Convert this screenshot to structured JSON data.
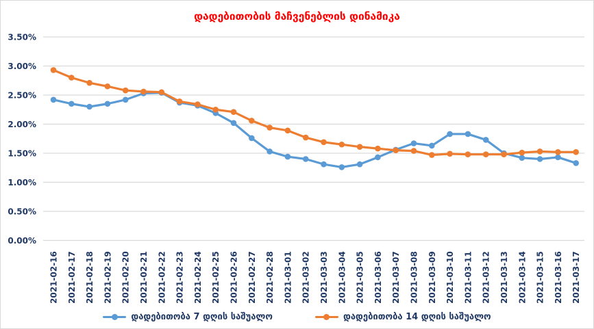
{
  "title": "დადებითობის მაჩვენებლის დინამიკა",
  "colors": {
    "title": "#ff0000",
    "axis_text": "#1f3864",
    "gridline": "#d9d9d9",
    "background": "#ffffff",
    "frame_border": "#d9d9d9",
    "series_7day": "#5b9bd5",
    "series_14day": "#ed7d31"
  },
  "chart_data": {
    "type": "line",
    "title": "დადებითობის მაჩვენებლის დინამიკა",
    "xlabel": "",
    "ylabel": "",
    "grid": true,
    "legend_position": "bottom",
    "marker": "circle",
    "ylim": [
      0,
      3.5
    ],
    "y_ticks": [
      {
        "value": 3.5,
        "label": "3.50%"
      },
      {
        "value": 3.0,
        "label": "3.00%"
      },
      {
        "value": 2.5,
        "label": "2.50%"
      },
      {
        "value": 2.0,
        "label": "2.00%"
      },
      {
        "value": 1.5,
        "label": "1.50%"
      },
      {
        "value": 1.0,
        "label": "1.00%"
      },
      {
        "value": 0.5,
        "label": "0.50%"
      },
      {
        "value": 0.0,
        "label": "0.00%"
      }
    ],
    "categories": [
      "2021-02-16",
      "2021-02-17",
      "2021-02-18",
      "2021-02-19",
      "2021-02-20",
      "2021-02-21",
      "2021-02-22",
      "2021-02-23",
      "2021-02-24",
      "2021-02-25",
      "2021-02-26",
      "2021-02-27",
      "2021-02-28",
      "2021-03-01",
      "2021-03-02",
      "2021-03-03",
      "2021-03-04",
      "2021-03-05",
      "2021-03-06",
      "2021-03-07",
      "2021-03-08",
      "2021-03-09",
      "2021-03-10",
      "2021-03-11",
      "2021-03-12",
      "2021-03-13",
      "2021-03-14",
      "2021-03-15",
      "2021-03-16",
      "2021-03-17"
    ],
    "series": [
      {
        "name": "დადებითობა 7 დღის საშუალო",
        "color": "#5b9bd5",
        "values": [
          2.42,
          2.35,
          2.3,
          2.35,
          2.42,
          2.53,
          2.54,
          2.37,
          2.32,
          2.19,
          2.02,
          1.76,
          1.53,
          1.44,
          1.4,
          1.31,
          1.26,
          1.31,
          1.43,
          1.56,
          1.67,
          1.63,
          1.83,
          1.83,
          1.73,
          1.5,
          1.42,
          1.4,
          1.43,
          1.33
        ]
      },
      {
        "name": "დადებითობა 14 დღის საშუალო",
        "color": "#ed7d31",
        "values": [
          2.93,
          2.8,
          2.71,
          2.65,
          2.58,
          2.56,
          2.55,
          2.39,
          2.34,
          2.25,
          2.21,
          2.06,
          1.94,
          1.89,
          1.77,
          1.69,
          1.65,
          1.61,
          1.58,
          1.55,
          1.54,
          1.47,
          1.49,
          1.48,
          1.48,
          1.48,
          1.51,
          1.53,
          1.52,
          1.52
        ]
      }
    ]
  }
}
